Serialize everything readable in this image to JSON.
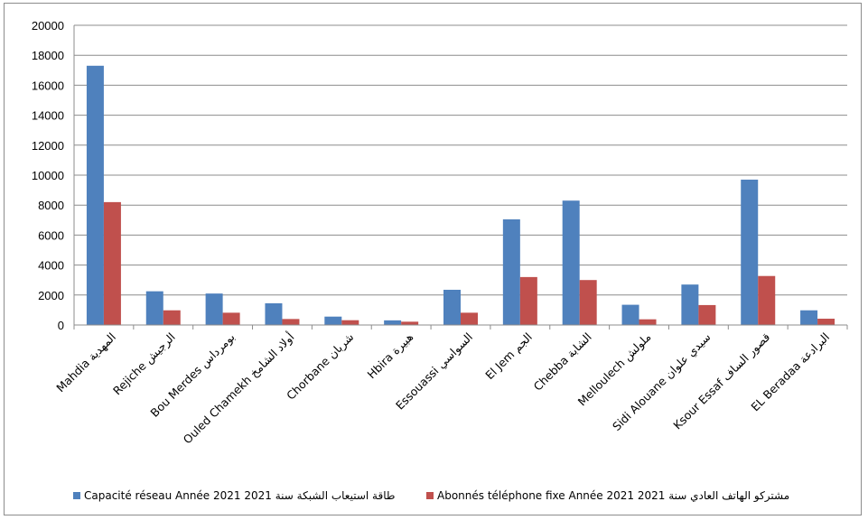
{
  "chart_data": {
    "type": "bar",
    "title": "",
    "xlabel": "",
    "ylabel": "",
    "ylim": [
      0,
      20000
    ],
    "yticks": [
      0,
      2000,
      4000,
      6000,
      8000,
      10000,
      12000,
      14000,
      16000,
      18000,
      20000
    ],
    "grid": true,
    "legend_position": "bottom",
    "categories": [
      "Mahdia المهدية",
      "Rejiche الرجيش",
      "Bou Merdes بومرداس",
      "Ouled Chamekh أولاد الشامخ",
      "Chorbane شربان",
      "Hbira هبيرة",
      "Essouassi السواسي",
      "El Jem الجم",
      "Chebba الشابة",
      "Melloulech ملولش",
      "Sidi Alouane سيدي علوان",
      "Ksour Essaf قصور الساف",
      "EL Beradaa البرادعة"
    ],
    "series": [
      {
        "name": "Capacité réseau Année 2021 طاقة استيعاب الشبكة سنة 2021",
        "color": "#4f81bd",
        "values": [
          17300,
          2250,
          2100,
          1450,
          560,
          310,
          2350,
          7050,
          8300,
          1350,
          2700,
          9700,
          980
        ]
      },
      {
        "name": "Abonnés téléphone fixe Année 2021 مشتركو الهاتف العادي سنة 2021",
        "color": "#c0504d",
        "values": [
          8200,
          980,
          820,
          400,
          320,
          220,
          820,
          3200,
          3000,
          380,
          1330,
          3270,
          420
        ]
      }
    ]
  }
}
